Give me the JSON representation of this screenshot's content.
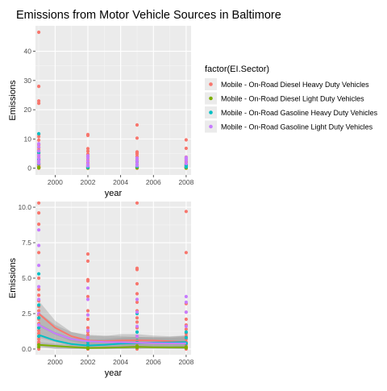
{
  "title": "Emissions from Motor Vehicle Sources in Baltimore",
  "legend": {
    "title": "factor(EI.Sector)",
    "placement": "right",
    "entries": [
      {
        "label": "Mobile - On-Road Diesel Heavy Duty Vehicles",
        "color": "#F8766D"
      },
      {
        "label": "Mobile - On-Road Diesel Light Duty Vehicles",
        "color": "#7CAE00"
      },
      {
        "label": "Mobile - On-Road Gasoline Heavy Duty Vehicles",
        "color": "#00BFC4"
      },
      {
        "label": "Mobile - On-Road Gasoline Light Duty Vehicles",
        "color": "#C77CFF"
      }
    ]
  },
  "chart_data": [
    {
      "type": "scatter",
      "xlabel": "year",
      "ylabel": "Emissions",
      "xlim": [
        1998.8,
        2008.3
      ],
      "ylim": [
        -2.3,
        48.7
      ],
      "xticks": [
        2000,
        2002,
        2004,
        2006,
        2008
      ],
      "yticks": [
        0,
        10,
        20,
        30,
        40
      ],
      "grid": true,
      "series": [
        {
          "name": "Mobile - On-Road Diesel Heavy Duty Vehicles",
          "color": "#F8766D",
          "x": [
            1999,
            1999,
            1999,
            1999,
            1999,
            1999,
            1999,
            1999,
            1999,
            1999,
            1999,
            1999,
            1999,
            1999,
            1999,
            1999,
            1999,
            1999,
            1999,
            1999,
            1999,
            1999,
            1999,
            1999,
            1999,
            1999,
            1999,
            1999,
            2002,
            2002,
            2002,
            2002,
            2002,
            2002,
            2002,
            2002,
            2002,
            2002,
            2002,
            2002,
            2002,
            2002,
            2002,
            2002,
            2002,
            2002,
            2002,
            2005,
            2005,
            2005,
            2005,
            2005,
            2005,
            2005,
            2005,
            2005,
            2005,
            2005,
            2005,
            2005,
            2005,
            2005,
            2005,
            2005,
            2005,
            2005,
            2008,
            2008,
            2008,
            2008,
            2008,
            2008,
            2008,
            2008,
            2008,
            2008,
            2008,
            2008,
            2008,
            2008,
            2008,
            2008,
            2008
          ],
          "y": [
            46.5,
            28.0,
            23.0,
            22.2,
            11.6,
            10.8,
            9.6,
            8.0,
            7.0,
            6.2,
            5.6,
            5.0,
            4.4,
            3.8,
            3.2,
            2.8,
            2.4,
            2.0,
            1.6,
            1.3,
            1.0,
            0.8,
            0.6,
            0.4,
            0.3,
            0.2,
            0.1,
            0.0,
            11.5,
            11.2,
            6.7,
            5.8,
            4.8,
            4.0,
            3.3,
            2.6,
            2.2,
            1.8,
            1.4,
            1.1,
            0.8,
            0.6,
            0.4,
            0.3,
            0.1,
            0.05,
            0.0,
            14.8,
            10.3,
            5.6,
            5.2,
            4.8,
            4.0,
            3.2,
            2.6,
            2.0,
            1.6,
            1.2,
            0.9,
            0.6,
            0.4,
            0.3,
            0.2,
            0.1,
            0.05,
            0.0,
            9.7,
            6.8,
            3.8,
            3.3,
            2.8,
            2.4,
            2.0,
            1.6,
            1.3,
            1.0,
            0.8,
            0.6,
            0.4,
            0.3,
            0.2,
            0.1,
            0.0
          ]
        },
        {
          "name": "Mobile - On-Road Diesel Light Duty Vehicles",
          "color": "#7CAE00",
          "x": [
            1999,
            1999,
            2002,
            2002,
            2005,
            2005,
            2008,
            2008
          ],
          "y": [
            0.3,
            0.15,
            0.1,
            0.05,
            0.2,
            0.1,
            0.15,
            0.08
          ]
        },
        {
          "name": "Mobile - On-Road Gasoline Heavy Duty Vehicles",
          "color": "#00BFC4",
          "x": [
            1999,
            1999,
            1999,
            1999,
            2002,
            2002,
            2002,
            2005,
            2005,
            2005,
            2008,
            2008,
            2008
          ],
          "y": [
            11.8,
            5.3,
            3.0,
            1.5,
            0.8,
            0.5,
            0.3,
            2.5,
            1.2,
            0.6,
            1.2,
            0.8,
            0.4
          ]
        },
        {
          "name": "Mobile - On-Road Gasoline Light Duty Vehicles",
          "color": "#C77CFF",
          "x": [
            1999,
            1999,
            1999,
            1999,
            1999,
            1999,
            1999,
            2002,
            2002,
            2002,
            2002,
            2002,
            2005,
            2005,
            2005,
            2005,
            2008,
            2008,
            2008,
            2008
          ],
          "y": [
            8.4,
            7.3,
            5.9,
            4.4,
            3.5,
            2.5,
            1.7,
            4.3,
            3.5,
            2.4,
            1.3,
            0.8,
            3.5,
            2.6,
            1.6,
            0.9,
            3.7,
            3.3,
            2.6,
            1.6
          ]
        }
      ]
    },
    {
      "type": "scatter",
      "xlabel": "year",
      "ylabel": "Emissions",
      "xlim": [
        1998.8,
        2008.3
      ],
      "ylim": [
        -0.4,
        10.4
      ],
      "xticks": [
        2000,
        2002,
        2004,
        2006,
        2008
      ],
      "yticks": [
        0.0,
        2.5,
        5.0,
        7.5,
        10.0
      ],
      "ytick_labels": [
        "0.0",
        "2.5",
        "5.0",
        "7.5",
        "10.0"
      ],
      "grid": true,
      "smooth": "loess with confidence band",
      "series": [
        {
          "name": "Mobile - On-Road Diesel Heavy Duty Vehicles",
          "color": "#F8766D",
          "x": [
            1999,
            1999,
            1999,
            1999,
            1999,
            1999,
            1999,
            1999,
            1999,
            1999,
            1999,
            1999,
            1999,
            1999,
            1999,
            1999,
            1999,
            1999,
            1999,
            1999,
            1999,
            1999,
            1999,
            2002,
            2002,
            2002,
            2002,
            2002,
            2002,
            2002,
            2002,
            2002,
            2002,
            2002,
            2002,
            2002,
            2002,
            2002,
            2002,
            2002,
            2005,
            2005,
            2005,
            2005,
            2005,
            2005,
            2005,
            2005,
            2005,
            2005,
            2005,
            2005,
            2005,
            2005,
            2005,
            2005,
            2008,
            2008,
            2008,
            2008,
            2008,
            2008,
            2008,
            2008,
            2008,
            2008,
            2008,
            2008,
            2008,
            2008
          ],
          "y": [
            10.3,
            9.6,
            8.8,
            6.8,
            5.0,
            4.2,
            3.8,
            3.4,
            3.0,
            2.7,
            2.4,
            2.1,
            1.8,
            1.5,
            1.3,
            1.1,
            0.9,
            0.7,
            0.5,
            0.4,
            0.3,
            0.1,
            0.0,
            6.7,
            6.2,
            4.9,
            4.8,
            3.7,
            2.7,
            2.4,
            2.1,
            1.5,
            1.2,
            1.0,
            0.8,
            0.6,
            0.4,
            0.3,
            0.1,
            0.0,
            10.3,
            5.7,
            5.6,
            4.6,
            3.9,
            3.3,
            2.7,
            2.2,
            1.9,
            1.5,
            1.2,
            0.9,
            0.6,
            0.4,
            0.2,
            0.0,
            9.7,
            6.8,
            3.2,
            2.6,
            2.1,
            1.7,
            1.4,
            1.1,
            0.9,
            0.7,
            0.5,
            0.3,
            0.1,
            0.0
          ]
        },
        {
          "name": "Mobile - On-Road Diesel Light Duty Vehicles",
          "color": "#7CAE00",
          "x": [
            1999,
            1999,
            2002,
            2002,
            2005,
            2005,
            2008,
            2008
          ],
          "y": [
            0.3,
            0.15,
            0.1,
            0.05,
            0.2,
            0.1,
            0.15,
            0.08
          ]
        },
        {
          "name": "Mobile - On-Road Gasoline Heavy Duty Vehicles",
          "color": "#00BFC4",
          "x": [
            1999,
            1999,
            1999,
            1999,
            1999,
            2002,
            2002,
            2002,
            2005,
            2005,
            2005,
            2008,
            2008,
            2008
          ],
          "y": [
            5.3,
            3.1,
            2.2,
            1.5,
            0.9,
            0.8,
            0.5,
            0.3,
            2.5,
            1.2,
            0.6,
            1.2,
            0.8,
            0.4
          ]
        },
        {
          "name": "Mobile - On-Road Gasoline Light Duty Vehicles",
          "color": "#C77CFF",
          "x": [
            1999,
            1999,
            1999,
            1999,
            1999,
            1999,
            1999,
            2002,
            2002,
            2002,
            2002,
            2002,
            2005,
            2005,
            2005,
            2005,
            2008,
            2008,
            2008,
            2008
          ],
          "y": [
            8.4,
            7.3,
            5.9,
            4.4,
            3.5,
            2.5,
            1.7,
            4.3,
            3.5,
            2.4,
            1.3,
            0.8,
            3.5,
            2.6,
            1.6,
            0.9,
            3.7,
            3.3,
            2.6,
            1.6
          ]
        }
      ],
      "smooth_lines": [
        {
          "name": "Mobile - On-Road Diesel Heavy Duty Vehicles",
          "color": "#F8766D",
          "x": [
            1999,
            2000,
            2001,
            2002,
            2003,
            2004,
            2005,
            2006,
            2007,
            2008
          ],
          "y": [
            2.5,
            1.5,
            0.9,
            0.6,
            0.55,
            0.6,
            0.62,
            0.6,
            0.55,
            0.5
          ],
          "band": [
            3.4,
            2.0,
            1.2,
            0.95,
            0.9,
            1.05,
            1.05,
            0.95,
            0.9,
            0.95
          ],
          "band_low": [
            1.6,
            1.0,
            0.55,
            0.3,
            0.2,
            0.2,
            0.2,
            0.2,
            0.2,
            0.1
          ]
        },
        {
          "name": "Mobile - On-Road Diesel Light Duty Vehicles",
          "color": "#7CAE00",
          "x": [
            1999,
            2000,
            2001,
            2002,
            2003,
            2004,
            2005,
            2006,
            2007,
            2008
          ],
          "y": [
            0.3,
            0.22,
            0.14,
            0.08,
            0.09,
            0.12,
            0.15,
            0.13,
            0.12,
            0.12
          ],
          "band": [
            0.5,
            0.38,
            0.27,
            0.2,
            0.2,
            0.23,
            0.27,
            0.25,
            0.23,
            0.25
          ],
          "band_low": [
            0.1,
            0.06,
            0.01,
            0.0,
            0.0,
            0.01,
            0.03,
            0.01,
            0.0,
            0.0
          ]
        },
        {
          "name": "Mobile - On-Road Gasoline Heavy Duty Vehicles",
          "color": "#00BFC4",
          "x": [
            1999,
            2000,
            2001,
            2002,
            2003,
            2004,
            2005,
            2006,
            2007,
            2008
          ],
          "y": [
            1.0,
            0.6,
            0.35,
            0.25,
            0.3,
            0.38,
            0.42,
            0.45,
            0.47,
            0.5
          ],
          "band": [
            1.8,
            1.2,
            0.8,
            0.65,
            0.7,
            0.8,
            0.85,
            0.85,
            0.85,
            0.95
          ],
          "band_low": [
            0.2,
            0.0,
            0.0,
            0.0,
            0.0,
            0.0,
            0.0,
            0.05,
            0.1,
            0.05
          ]
        },
        {
          "name": "Mobile - On-Road Gasoline Light Duty Vehicles",
          "color": "#C77CFF",
          "x": [
            1999,
            2000,
            2001,
            2002,
            2003,
            2004,
            2005,
            2006,
            2007,
            2008
          ],
          "y": [
            1.7,
            1.1,
            0.7,
            0.55,
            0.5,
            0.48,
            0.45,
            0.42,
            0.4,
            0.4
          ],
          "band": [
            2.6,
            1.7,
            1.2,
            1.0,
            0.95,
            0.9,
            0.85,
            0.8,
            0.78,
            0.85
          ],
          "band_low": [
            0.8,
            0.5,
            0.2,
            0.1,
            0.05,
            0.06,
            0.05,
            0.04,
            0.02,
            0.0
          ]
        }
      ]
    }
  ]
}
